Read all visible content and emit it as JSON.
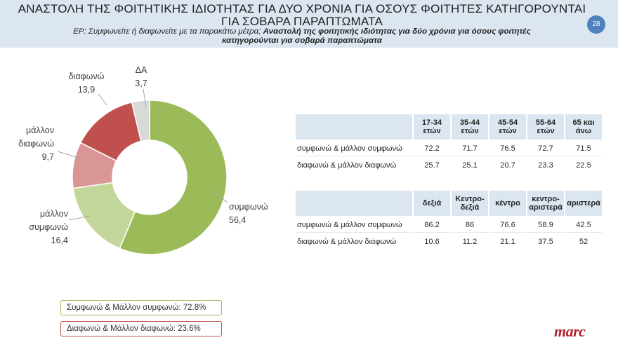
{
  "header": {
    "title_line1": "ΑΝΑΣΤΟΛΗ ΤΗΣ ΦΟΙΤΗΤΙΚΗΣ ΙΔΙΟΤΗΤΑΣ ΓΙΑ ΔΥΟ ΧΡΟΝΙΑ ΓΙΑ ΟΣΟΥΣ ΦΟΙΤΗΤΕΣ ΚΑΤΗΓΟΡΟΥΝΤΑΙ",
    "title_line2": "ΓΙΑ ΣΟΒΑΡΑ ΠΑΡΑΠΤΩΜΑΤΑ",
    "question_prefix": "ΕΡ: Συμφωνείτε ή διαφωνείτε με τα παρακάτω μέτρα;",
    "question_bold_line1": "Αναστολή της φοιτητικής ιδιότητας για δύο χρόνια για όσους φοιτητές",
    "question_bold_line2": "κατηγορούνται για σοβαρά παραπτώματα",
    "page_number": "28"
  },
  "chart_data": [
    {
      "type": "pie",
      "variant": "donut",
      "slices": [
        {
          "label": "συμφωνώ",
          "value": 56.4,
          "display": "56,4",
          "color": "#9bbb59"
        },
        {
          "label": "μάλλον συμφωνώ",
          "value": 16.4,
          "display": "16,4",
          "color": "#c4d79b"
        },
        {
          "label": "μάλλον διαφωνώ",
          "value": 9.7,
          "display": "9,7",
          "color": "#da9694"
        },
        {
          "label": "διαφωνώ",
          "value": 13.9,
          "display": "13,9",
          "color": "#c0504d"
        },
        {
          "label": "ΔΑ",
          "value": 3.7,
          "display": "3,7",
          "color": "#d9d9d9"
        }
      ],
      "labels_display": {
        "agree": [
          "συμφωνώ",
          "56,4"
        ],
        "somewhat_agree": [
          "μάλλον",
          "συμφωνώ",
          "16,4"
        ],
        "somewhat_disagree": [
          "μάλλον",
          "διαφωνώ",
          "9,7"
        ],
        "disagree": [
          "διαφωνώ",
          "13,9"
        ],
        "na": [
          "ΔΑ",
          "3,7"
        ]
      }
    },
    {
      "type": "table",
      "columns": [
        "17-34 ετών",
        "35-44 ετών",
        "45-54 ετών",
        "55-64 ετών",
        "65 και άνω"
      ],
      "columns_display": [
        [
          "17-34",
          "ετών"
        ],
        [
          "35-44",
          "ετών"
        ],
        [
          "45-54",
          "ετών"
        ],
        [
          "55-64",
          "ετών"
        ],
        [
          "65 και",
          "άνω"
        ]
      ],
      "rows": [
        {
          "label": "συμφωνώ & μάλλον συμφωνώ",
          "values": [
            "72.2",
            "71.7",
            "76.5",
            "72.7",
            "71.5"
          ]
        },
        {
          "label": "διαφωνώ & μάλλον διαφωνώ",
          "values": [
            "25.7",
            "25.1",
            "20.7",
            "23.3",
            "22.5"
          ]
        }
      ]
    },
    {
      "type": "table",
      "columns": [
        "δεξιά",
        "Κεντρο-δεξιά",
        "κέντρο",
        "κεντρο-αριστερά",
        "αριστερά"
      ],
      "columns_display": [
        [
          "δεξιά"
        ],
        [
          "Κεντρο-",
          "δεξιά"
        ],
        [
          "κέντρο"
        ],
        [
          "κεντρο-",
          "αριστερά"
        ],
        [
          "αριστερά"
        ]
      ],
      "rows": [
        {
          "label": "συμφωνώ & μάλλον συμφωνώ",
          "values": [
            "86.2",
            "86",
            "76.6",
            "58.9",
            "42.5"
          ]
        },
        {
          "label": "διαφωνώ & μάλλον διαφωνώ",
          "values": [
            "10.6",
            "11.2",
            "21.1",
            "37.5",
            "52"
          ]
        }
      ]
    }
  ],
  "summary": {
    "agree_text": "Συμφωνώ & Μάλλον συμφωνώ: 72.8%",
    "disagree_text": "Διαφωνώ & Μάλλον διαφωνώ: 23.6%",
    "agree_color": "#9bbb59",
    "disagree_color": "#c0504d"
  },
  "logo": {
    "text": "marc"
  }
}
